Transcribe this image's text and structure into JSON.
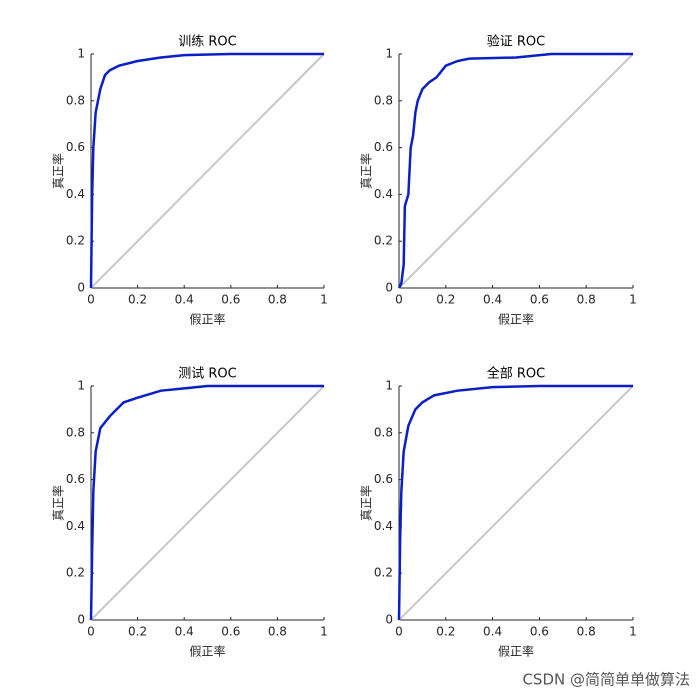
{
  "chart_data": [
    {
      "type": "line",
      "title": "训练 ROC",
      "xlabel": "假正率",
      "ylabel": "真正率",
      "xlim": [
        0,
        1
      ],
      "ylim": [
        0,
        1
      ],
      "xticks": [
        0,
        0.2,
        0.4,
        0.6,
        0.8,
        1
      ],
      "yticks": [
        0,
        0.2,
        0.4,
        0.6,
        0.8,
        1
      ],
      "series": [
        {
          "color": "#c8c8c8",
          "x": [
            0,
            1
          ],
          "values": [
            0,
            1
          ]
        },
        {
          "color": "#0a1fc8",
          "x": [
            0,
            0.005,
            0.01,
            0.02,
            0.04,
            0.06,
            0.08,
            0.12,
            0.2,
            0.3,
            0.4,
            0.6,
            1
          ],
          "values": [
            0,
            0.4,
            0.6,
            0.75,
            0.85,
            0.91,
            0.93,
            0.95,
            0.97,
            0.985,
            0.995,
            1,
            1
          ]
        }
      ]
    },
    {
      "type": "line",
      "title": "验证 ROC",
      "xlabel": "假正率",
      "ylabel": "真正率",
      "xlim": [
        0,
        1
      ],
      "ylim": [
        0,
        1
      ],
      "xticks": [
        0,
        0.2,
        0.4,
        0.6,
        0.8,
        1
      ],
      "yticks": [
        0,
        0.2,
        0.4,
        0.6,
        0.8,
        1
      ],
      "series": [
        {
          "color": "#c8c8c8",
          "x": [
            0,
            1
          ],
          "values": [
            0,
            1
          ]
        },
        {
          "color": "#0a1fc8",
          "x": [
            0,
            0.01,
            0.02,
            0.025,
            0.04,
            0.05,
            0.06,
            0.07,
            0.08,
            0.1,
            0.13,
            0.16,
            0.2,
            0.25,
            0.3,
            0.5,
            0.65,
            1
          ],
          "values": [
            0,
            0.02,
            0.1,
            0.35,
            0.4,
            0.6,
            0.65,
            0.75,
            0.8,
            0.85,
            0.88,
            0.9,
            0.95,
            0.97,
            0.98,
            0.985,
            1,
            1
          ]
        }
      ]
    },
    {
      "type": "line",
      "title": "测试 ROC",
      "xlabel": "假正率",
      "ylabel": "真正率",
      "xlim": [
        0,
        1
      ],
      "ylim": [
        0,
        1
      ],
      "xticks": [
        0,
        0.2,
        0.4,
        0.6,
        0.8,
        1
      ],
      "yticks": [
        0,
        0.2,
        0.4,
        0.6,
        0.8,
        1
      ],
      "series": [
        {
          "color": "#c8c8c8",
          "x": [
            0,
            1
          ],
          "values": [
            0,
            1
          ]
        },
        {
          "color": "#0a1fc8",
          "x": [
            0,
            0.005,
            0.01,
            0.02,
            0.04,
            0.08,
            0.14,
            0.2,
            0.3,
            0.4,
            0.5,
            1
          ],
          "values": [
            0,
            0.3,
            0.55,
            0.72,
            0.82,
            0.87,
            0.93,
            0.95,
            0.98,
            0.99,
            1,
            1
          ]
        }
      ]
    },
    {
      "type": "line",
      "title": "全部 ROC",
      "xlabel": "假正率",
      "ylabel": "真正率",
      "xlim": [
        0,
        1
      ],
      "ylim": [
        0,
        1
      ],
      "xticks": [
        0,
        0.2,
        0.4,
        0.6,
        0.8,
        1
      ],
      "yticks": [
        0,
        0.2,
        0.4,
        0.6,
        0.8,
        1
      ],
      "series": [
        {
          "color": "#c8c8c8",
          "x": [
            0,
            1
          ],
          "values": [
            0,
            1
          ]
        },
        {
          "color": "#0a1fc8",
          "x": [
            0,
            0.005,
            0.01,
            0.02,
            0.04,
            0.07,
            0.1,
            0.15,
            0.25,
            0.4,
            0.6,
            1
          ],
          "values": [
            0,
            0.35,
            0.55,
            0.72,
            0.83,
            0.9,
            0.93,
            0.96,
            0.98,
            0.995,
            1,
            1
          ]
        }
      ]
    }
  ],
  "watermark": "CSDN @简简单单做算法"
}
